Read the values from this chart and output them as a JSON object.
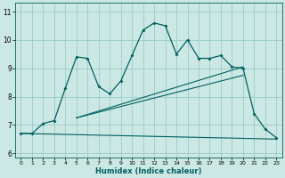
{
  "xlabel": "Humidex (Indice chaleur)",
  "bg_color": "#cce8e4",
  "grid_color": "#99cccc",
  "line_color": "#006060",
  "xlim": [
    -0.5,
    23.5
  ],
  "ylim": [
    5.85,
    11.3
  ],
  "xticks": [
    0,
    1,
    2,
    3,
    4,
    5,
    6,
    7,
    8,
    9,
    10,
    11,
    12,
    13,
    14,
    15,
    16,
    17,
    18,
    19,
    20,
    21,
    22,
    23
  ],
  "yticks": [
    6,
    7,
    8,
    9,
    10,
    11
  ],
  "line1_x": [
    0,
    1,
    2,
    3,
    4,
    5,
    6,
    7,
    8,
    9,
    10,
    11,
    12,
    13,
    14,
    15,
    16,
    17,
    18,
    19,
    20,
    21,
    22,
    23
  ],
  "line1_y": [
    6.7,
    6.7,
    7.05,
    7.15,
    8.3,
    9.4,
    9.35,
    8.35,
    8.1,
    8.55,
    9.45,
    10.35,
    10.6,
    10.5,
    9.5,
    10.0,
    9.35,
    9.35,
    9.45,
    9.05,
    9.0,
    7.4,
    6.85,
    6.55
  ],
  "line2_x": [
    5,
    20
  ],
  "line2_y": [
    7.25,
    9.05
  ],
  "line3_x": [
    5,
    20
  ],
  "line3_y": [
    7.25,
    8.75
  ],
  "line4_x": [
    0,
    23
  ],
  "line4_y": [
    6.7,
    6.5
  ]
}
